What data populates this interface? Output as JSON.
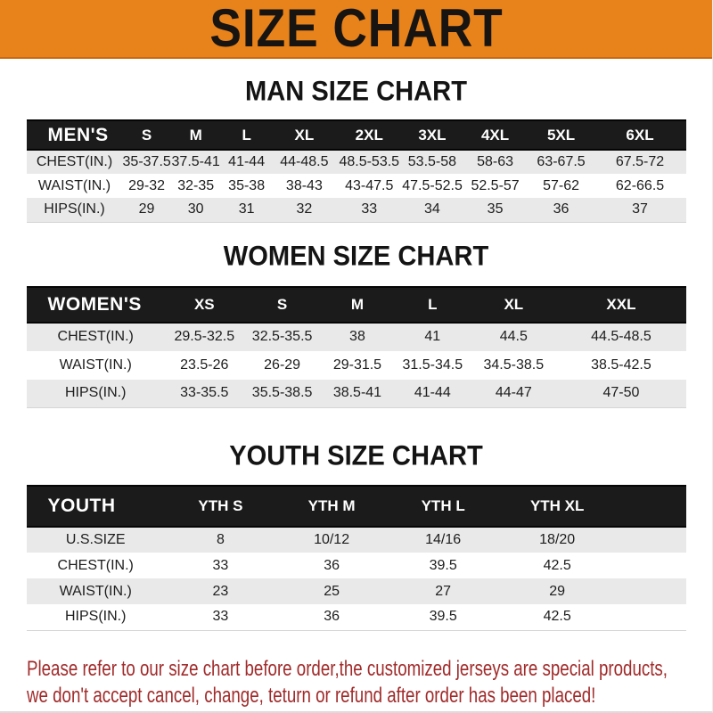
{
  "banner": {
    "title": "SIZE CHART"
  },
  "colors": {
    "banner_orange": "#E8821B",
    "header_bar_black": "#1B1B1B",
    "row_alternate_gray": "#E9E9E9",
    "footer_red": "#A12B2B"
  },
  "sections": [
    {
      "title": "MAN SIZE CHART",
      "header_label": "MEN'S",
      "columns": [
        "S",
        "M",
        "L",
        "XL",
        "2XL",
        "3XL",
        "4XL",
        "5XL",
        "6XL"
      ],
      "rows": [
        {
          "label": "CHEST(IN.)",
          "values": [
            "35-37.5",
            "37.5-41",
            "41-44",
            "44-48.5",
            "48.5-53.5",
            "53.5-58",
            "58-63",
            "63-67.5",
            "67.5-72"
          ]
        },
        {
          "label": "WAIST(IN.)",
          "values": [
            "29-32",
            "32-35",
            "35-38",
            "38-43",
            "43-47.5",
            "47.5-52.5",
            "52.5-57",
            "57-62",
            "62-66.5"
          ]
        },
        {
          "label": "HIPS(IN.)",
          "values": [
            "29",
            "30",
            "31",
            "32",
            "33",
            "34",
            "35",
            "36",
            "37"
          ]
        }
      ]
    },
    {
      "title": "WOMEN SIZE CHART",
      "header_label": "WOMEN'S",
      "columns": [
        "XS",
        "S",
        "M",
        "L",
        "XL",
        "XXL"
      ],
      "rows": [
        {
          "label": "CHEST(IN.)",
          "values": [
            "29.5-32.5",
            "32.5-35.5",
            "38",
            "41",
            "44.5",
            "44.5-48.5"
          ]
        },
        {
          "label": "WAIST(IN.)",
          "values": [
            "23.5-26",
            "26-29",
            "29-31.5",
            "31.5-34.5",
            "34.5-38.5",
            "38.5-42.5"
          ]
        },
        {
          "label": "HIPS(IN.)",
          "values": [
            "33-35.5",
            "35.5-38.5",
            "38.5-41",
            "41-44",
            "44-47",
            "47-50"
          ]
        }
      ]
    },
    {
      "title": "YOUTH SIZE CHART",
      "header_label": "YOUTH",
      "columns": [
        "YTH S",
        "YTH M",
        "YTH L",
        "YTH XL"
      ],
      "rows": [
        {
          "label": "U.S.SIZE",
          "values": [
            "8",
            "10/12",
            "14/16",
            "18/20"
          ]
        },
        {
          "label": "CHEST(IN.)",
          "values": [
            "33",
            "36",
            "39.5",
            "42.5"
          ]
        },
        {
          "label": "WAIST(IN.)",
          "values": [
            "23",
            "25",
            "27",
            "29"
          ]
        },
        {
          "label": "HIPS(IN.)",
          "values": [
            "33",
            "36",
            "39.5",
            "42.5"
          ]
        }
      ]
    }
  ],
  "footer": {
    "line1": "Please refer to our size chart before order,the customized jerseys are special products,",
    "line2": "we don't accept cancel, change, teturn or refund after order has been placed!"
  }
}
